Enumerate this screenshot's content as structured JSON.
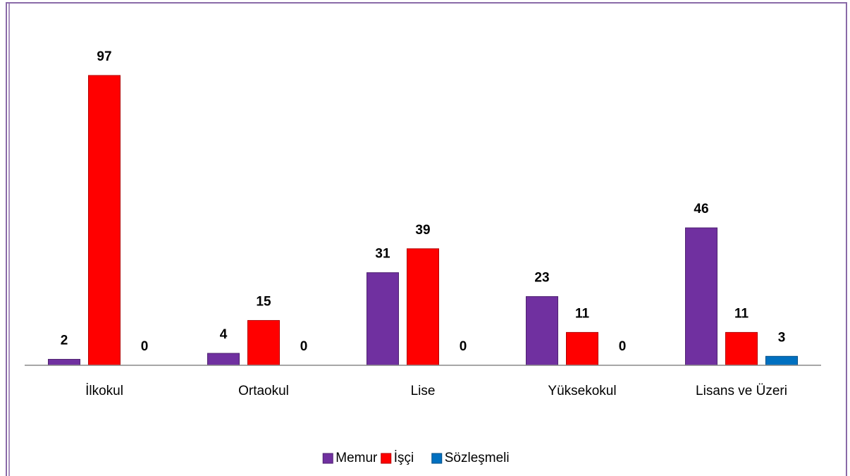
{
  "chart_data": {
    "type": "bar",
    "categories": [
      "İlkokul",
      "Ortaokul",
      "Lise",
      "Yüksekokul",
      "Lisans ve Üzeri"
    ],
    "series": [
      {
        "name": "Memur",
        "color": "#7030a0",
        "values": [
          2,
          4,
          31,
          23,
          46
        ]
      },
      {
        "name": "İşçi",
        "color": "#ff0000",
        "values": [
          97,
          15,
          39,
          11,
          11
        ]
      },
      {
        "name": "Sözleşmeli",
        "color": "#0070c0",
        "values": [
          0,
          0,
          0,
          0,
          3
        ]
      }
    ],
    "legend": "bottom"
  }
}
